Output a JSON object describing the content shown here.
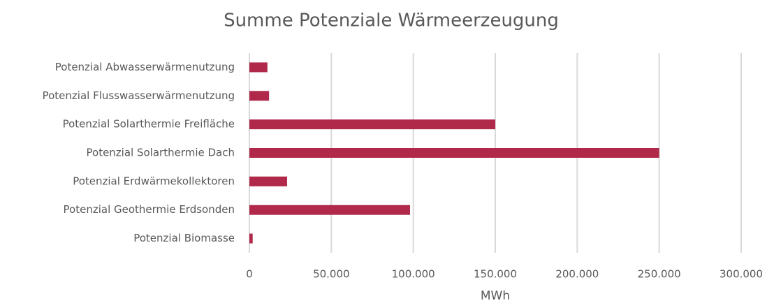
{
  "chart_data": {
    "type": "hbar",
    "title": "Summe Potenziale Wärmeerzeugung",
    "categories": [
      "Potenzial Abwasserwärmenutzung",
      "Potenzial Flusswasserwärmenutzung",
      "Potenzial Solarthermie Freifläche",
      "Potenzial Solarthermie Dach",
      "Potenzial Erdwärmekollektoren",
      "Potenzial Geothermie Erdsonden",
      "Potenzial Biomasse"
    ],
    "values": [
      11000,
      12000,
      150000,
      250000,
      23000,
      98000,
      2000
    ],
    "color": "#b0294a",
    "xlabel": "MWh",
    "xlim": [
      0,
      300000
    ],
    "xticks": [
      0,
      {
        "value": 50000,
        "label": "50.000"
      },
      {
        "value": 100000,
        "label": "100.000"
      },
      {
        "value": 150000,
        "label": "150.000"
      },
      {
        "value": 200000,
        "label": "200.000"
      },
      {
        "value": 250000,
        "label": "250.000"
      },
      {
        "value": 300000,
        "label": "300.000"
      }
    ],
    "grid": true
  }
}
